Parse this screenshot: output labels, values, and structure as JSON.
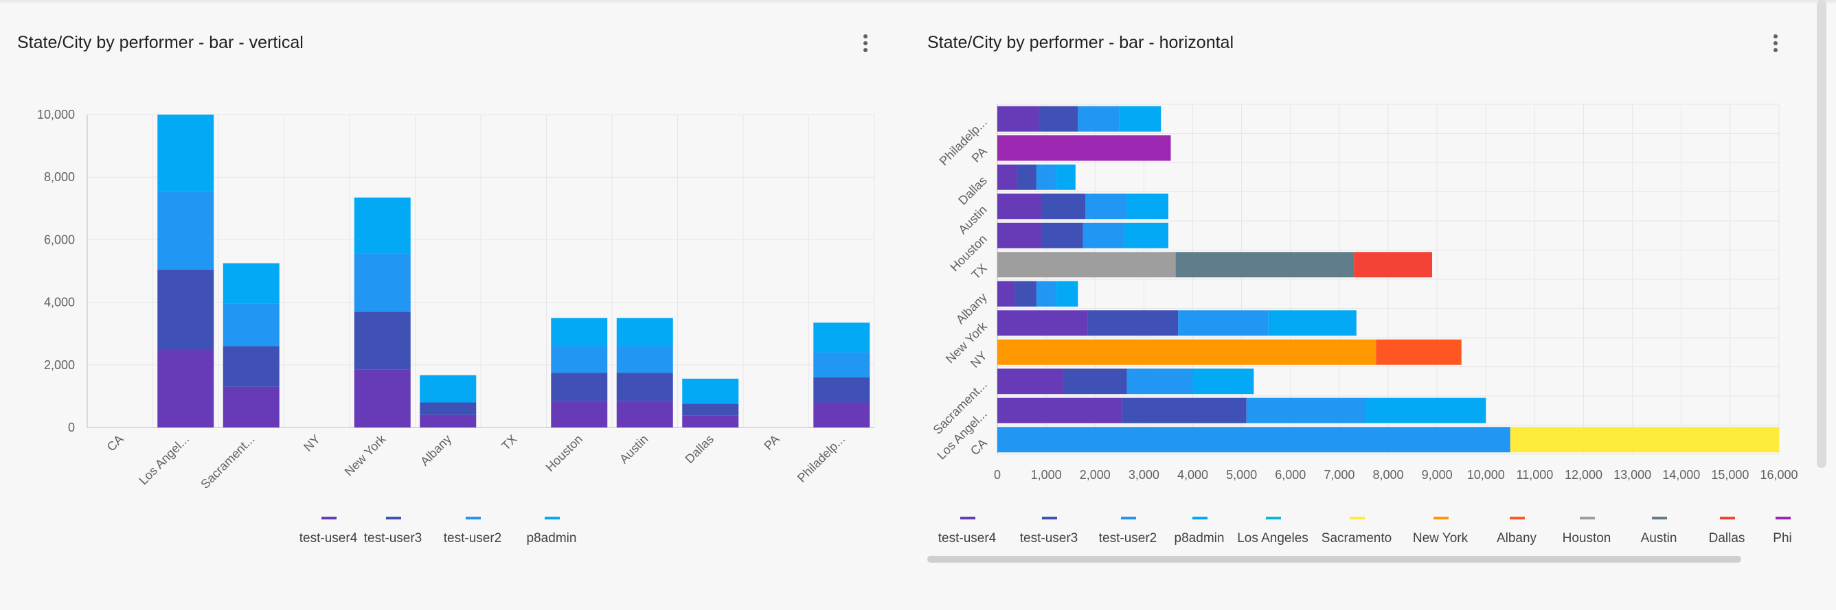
{
  "chart_data": [
    {
      "type": "bar",
      "orientation": "vertical",
      "stacked": true,
      "title": "State/City by performer - bar - vertical",
      "categories": [
        "CA",
        "Los Angel...",
        "Sacrament...",
        "NY",
        "New York",
        "Albany",
        "TX",
        "Houston",
        "Austin",
        "Dallas",
        "PA",
        "Philadelp..."
      ],
      "ylim": [
        0,
        10000
      ],
      "yticks": [
        "0",
        "2,000",
        "4,000",
        "6,000",
        "8,000",
        "10,000"
      ],
      "series": [
        {
          "name": "test-user4",
          "color": "#673ab7",
          "values": [
            0,
            2500,
            1300,
            0,
            1850,
            400,
            0,
            850,
            850,
            380,
            0,
            800
          ]
        },
        {
          "name": "test-user3",
          "color": "#3f51b5",
          "values": [
            0,
            2550,
            1300,
            0,
            1850,
            400,
            0,
            900,
            900,
            380,
            0,
            800
          ]
        },
        {
          "name": "test-user2",
          "color": "#2196f3",
          "values": [
            0,
            2500,
            1350,
            0,
            1850,
            0,
            0,
            850,
            850,
            0,
            0,
            800
          ]
        },
        {
          "name": "p8admin",
          "color": "#03a9f4",
          "values": [
            0,
            2450,
            1300,
            0,
            1800,
            870,
            0,
            900,
            900,
            800,
            0,
            950
          ]
        }
      ]
    },
    {
      "type": "bar",
      "orientation": "horizontal",
      "stacked": true,
      "title": "State/City by performer - bar - horizontal",
      "categories": [
        "CA",
        "Los Angel...",
        "Sacrament...",
        "NY",
        "New York",
        "Albany",
        "TX",
        "Houston",
        "Austin",
        "Dallas",
        "PA",
        "Philadelp..."
      ],
      "xlim": [
        0,
        16000
      ],
      "xticks": [
        "0",
        "1,000",
        "2,000",
        "3,000",
        "4,000",
        "5,000",
        "6,000",
        "7,000",
        "8,000",
        "9,000",
        "10,000",
        "11,000",
        "12,000",
        "13,000",
        "14,000",
        "15,000",
        "16,000"
      ],
      "series": [
        {
          "name": "test-user4",
          "color": "#673ab7",
          "values": [
            0,
            2550,
            1350,
            0,
            1850,
            350,
            0,
            900,
            900,
            400,
            0,
            850
          ]
        },
        {
          "name": "test-user3",
          "color": "#3f51b5",
          "values": [
            0,
            2550,
            1300,
            0,
            1850,
            450,
            0,
            850,
            900,
            400,
            0,
            800
          ]
        },
        {
          "name": "test-user2",
          "color": "#2196f3",
          "values": [
            10500,
            2450,
            1350,
            0,
            1850,
            400,
            0,
            850,
            850,
            400,
            0,
            850
          ]
        },
        {
          "name": "p8admin",
          "color": "#03a9f4",
          "values": [
            0,
            2450,
            1250,
            0,
            1800,
            450,
            0,
            900,
            850,
            400,
            0,
            850
          ]
        },
        {
          "name": "Los Angeles",
          "color": "#00bcd4",
          "values": [
            0,
            0,
            0,
            0,
            0,
            0,
            0,
            0,
            0,
            0,
            0,
            0
          ]
        },
        {
          "name": "Sacramento",
          "color": "#ffeb3b",
          "values": [
            5600,
            0,
            0,
            0,
            0,
            0,
            0,
            0,
            0,
            0,
            0,
            0
          ]
        },
        {
          "name": "New York",
          "color": "#ff9800",
          "values": [
            0,
            0,
            0,
            7750,
            0,
            0,
            0,
            0,
            0,
            0,
            0,
            0
          ]
        },
        {
          "name": "Albany",
          "color": "#ff5722",
          "values": [
            0,
            0,
            0,
            1750,
            0,
            0,
            0,
            0,
            0,
            0,
            0,
            0
          ]
        },
        {
          "name": "Houston",
          "color": "#9e9e9e",
          "values": [
            0,
            0,
            0,
            0,
            0,
            0,
            3650,
            0,
            0,
            0,
            0,
            0
          ]
        },
        {
          "name": "Austin",
          "color": "#607d8b",
          "values": [
            0,
            0,
            0,
            0,
            0,
            0,
            3650,
            0,
            0,
            0,
            0,
            0
          ]
        },
        {
          "name": "Dallas",
          "color": "#f44336",
          "values": [
            0,
            0,
            0,
            0,
            0,
            0,
            1600,
            0,
            0,
            0,
            0,
            0
          ]
        },
        {
          "name": "Philadelphia",
          "color": "#9c27b0",
          "values": [
            0,
            0,
            0,
            0,
            0,
            0,
            0,
            0,
            0,
            0,
            3550,
            0
          ]
        }
      ],
      "legend_visible": [
        "test-user4",
        "test-user3",
        "test-user2",
        "p8admin",
        "Los Angeles",
        "Sacramento",
        "New York",
        "Albany",
        "Houston",
        "Austin",
        "Dallas",
        "Phi"
      ]
    }
  ]
}
